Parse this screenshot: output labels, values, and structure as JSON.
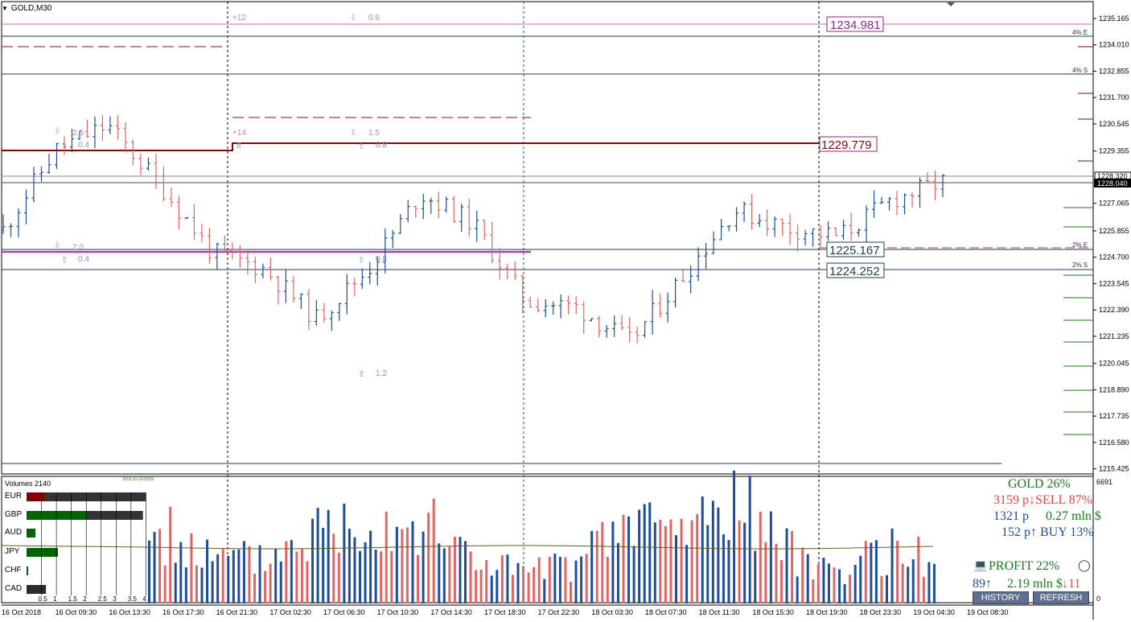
{
  "window": {
    "symbol": "GOLD,M30"
  },
  "price_axis": {
    "labels": [
      "1235.165",
      "1234.010",
      "1232.855",
      "1231.700",
      "1230.545",
      "1229.355",
      "1227.065",
      "1225.855",
      "1224.700",
      "1223.545",
      "1222.390",
      "1221.235",
      "1220.045",
      "1218.890",
      "1217.735",
      "1216.580",
      "1215.425"
    ],
    "current_price": "1228.040",
    "prev_price": "1228.320"
  },
  "time_axis": [
    "16 Oct 2018",
    "16 Oct 09:30",
    "16 Oct 13:30",
    "16 Oct 17:30",
    "16 Oct 21:30",
    "17 Oct 02:30",
    "17 Oct 06:30",
    "17 Oct 10:30",
    "17 Oct 14:30",
    "17 Oct 18:30",
    "17 Oct 22:30",
    "18 Oct 03:30",
    "18 Oct 07:30",
    "18 Oct 11:30",
    "18 Oct 15:30",
    "18 Oct 19:30",
    "18 Oct 23:30",
    "19 Oct 04:30",
    "19 Oct 08:30"
  ],
  "levels": {
    "box1": "1234.981",
    "box2": "1229.779",
    "box3": "1225.167",
    "box4": "1224.252",
    "tag_4e": "4% E",
    "tag_4s": "4% S",
    "tag_2e": "2% E",
    "tag_2s": "2% S"
  },
  "annotations": {
    "p12": "+12",
    "p14": "+14",
    "p8": "8",
    "v06": "0.6",
    "v15": "1.5",
    "v25": "2.5",
    "v04a": "0.4",
    "v08a": "0.8",
    "v20": "2.0",
    "v04b": "0.4",
    "v08b": "0.8",
    "v12": "1.2"
  },
  "volume_panel": {
    "title": "Volumes 2140",
    "max_label": "6691",
    "zero_label": "0",
    "stamp": "2018.10.19 09:59",
    "currencies": [
      {
        "name": "EUR",
        "value": 4.0,
        "active": 0.6,
        "color": "#800000"
      },
      {
        "name": "GBP",
        "value": 3.9,
        "active": 2.0,
        "color": "#006400"
      },
      {
        "name": "AUD",
        "value": 0.3,
        "active": 0.3,
        "color": "#006400"
      },
      {
        "name": "JPY",
        "value": 1.05,
        "active": 1.05,
        "color": "#006400"
      },
      {
        "name": "CHF",
        "value": 0.05,
        "active": 0.05,
        "color": "#006400"
      },
      {
        "name": "CAD",
        "value": 0.65,
        "active": 0.65,
        "color": "#2b2b2b"
      }
    ],
    "scale": [
      "0.5",
      "1",
      "1.5",
      "2",
      "2.5",
      "3",
      "3.5",
      "4"
    ]
  },
  "stats": {
    "line1": "GOLD 26%",
    "line2": "3159 p↓SELL 87%",
    "line3": "1321 p",
    "line3b": "0.27 mln $",
    "line4": "152 p↑  BUY 13%",
    "profit": "PROFIT 22%",
    "line6a": "89↑",
    "line6b": "2.19 mln $",
    "line6c": "↓11",
    "history_label": "HISTORY",
    "refresh_label": "REFRESH"
  },
  "colors": {
    "bull": "#1f4e96",
    "bear": "#e06666",
    "dark_red": "#7b0c0c",
    "magenta": "#b040b0",
    "pink": "#b8669a",
    "stat_green": "#1c7a1c",
    "stat_red": "#e04848",
    "stat_blue": "#1f4e96"
  },
  "chart_data": {
    "type": "ohlc",
    "x": [
      "16 Oct 2018",
      "16 Oct 09:30",
      "16 Oct 13:30",
      "16 Oct 17:30",
      "16 Oct 21:30",
      "17 Oct 02:30",
      "17 Oct 06:30",
      "17 Oct 10:30",
      "17 Oct 14:30",
      "17 Oct 18:30",
      "17 Oct 22:30",
      "18 Oct 03:30",
      "18 Oct 07:30",
      "18 Oct 11:30",
      "18 Oct 15:30",
      "18 Oct 19:30",
      "18 Oct 23:30",
      "19 Oct 04:30",
      "19 Oct 08:30"
    ],
    "close": [
      1225.9,
      1229.4,
      1230.5,
      1227.9,
      1224.9,
      1224.2,
      1222.0,
      1224.2,
      1227.5,
      1226.2,
      1222.8,
      1222.5,
      1221.0,
      1223.8,
      1226.8,
      1226.0,
      1225.6,
      1227.2,
      1228.0
    ],
    "ylim": [
      1215.2,
      1235.8
    ],
    "volumes": [
      3500,
      4300,
      3800,
      4600,
      2800,
      2900,
      4800,
      5600,
      5200,
      2900,
      2000,
      2500,
      5300,
      4600,
      6691,
      3300,
      2100,
      3400,
      2600
    ]
  }
}
